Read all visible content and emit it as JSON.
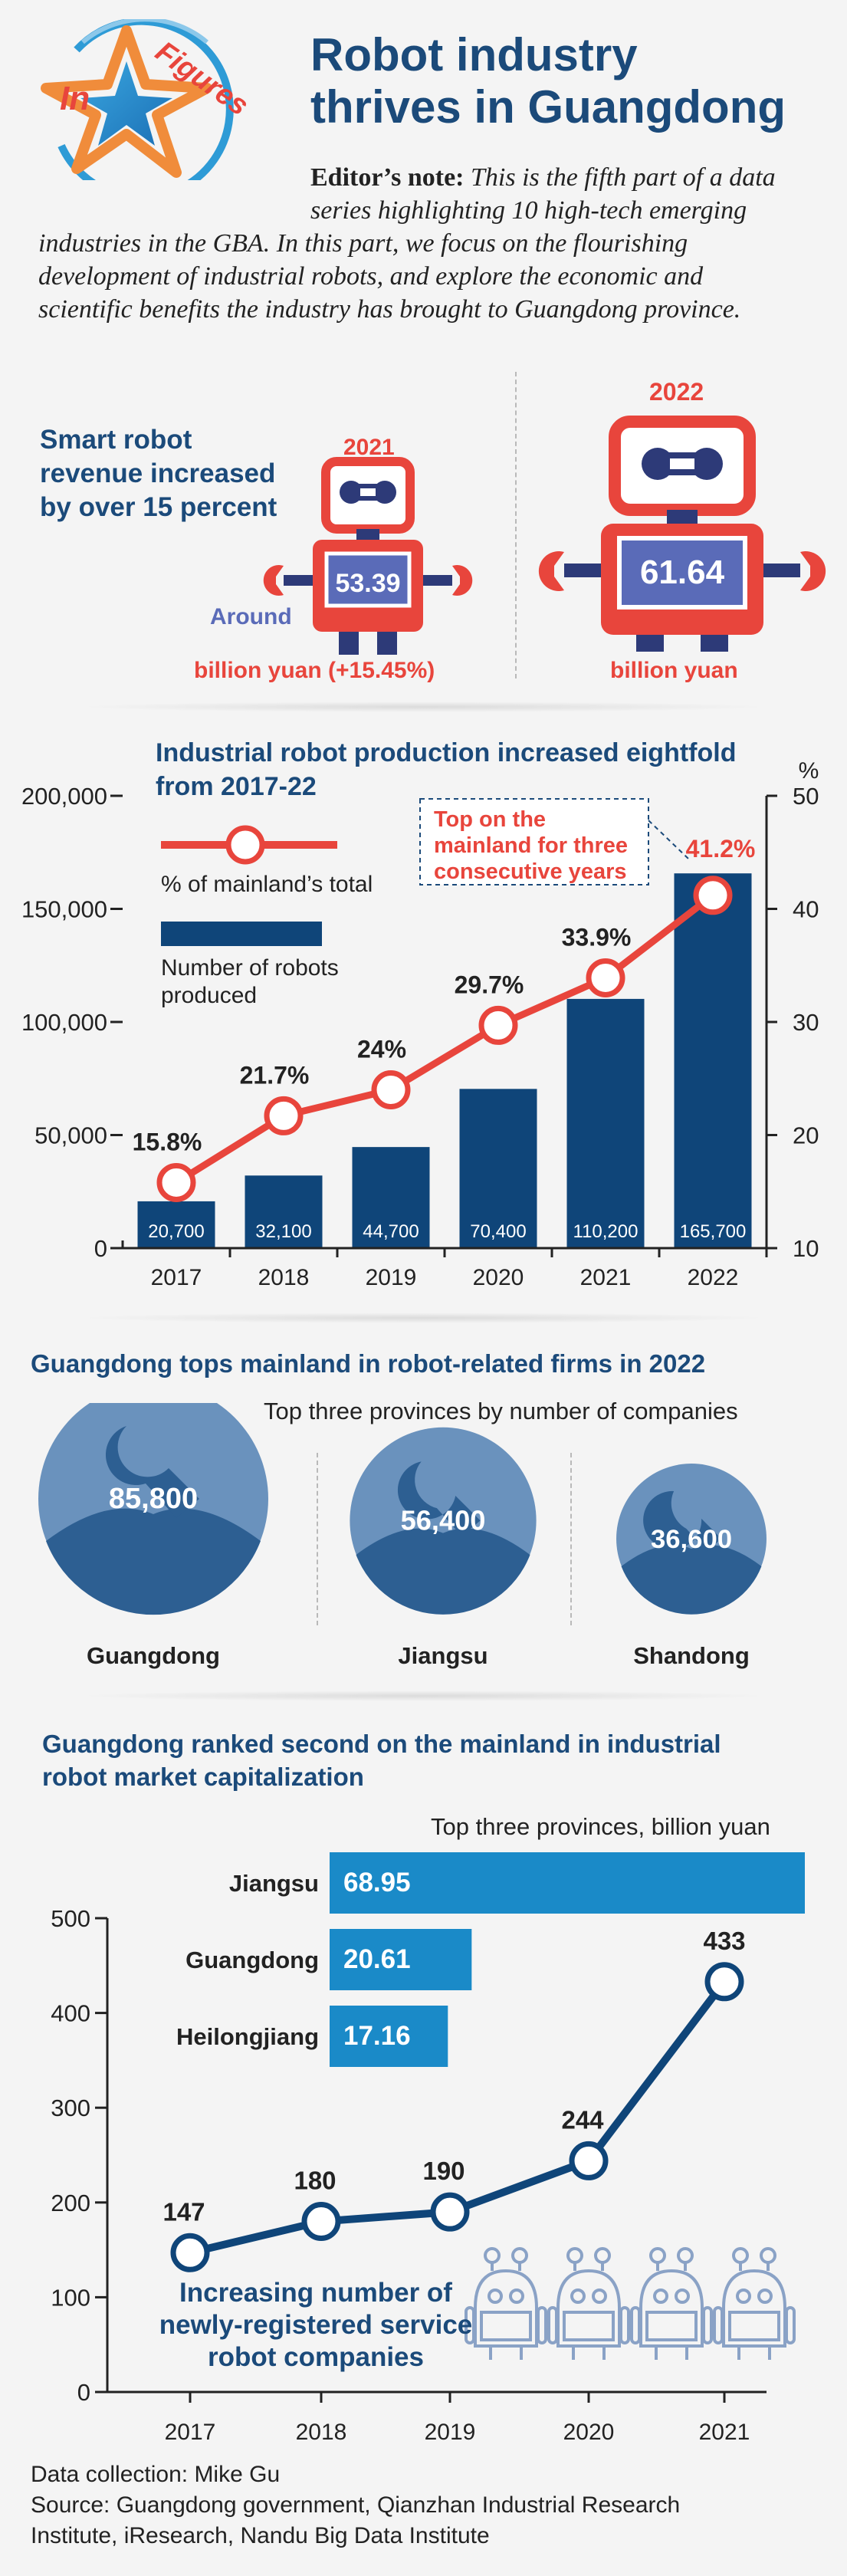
{
  "header": {
    "badge_in": "In",
    "badge_figures": "Figures",
    "title_line1": "Robot industry",
    "title_line2": "thrives in Guangdong",
    "note_label": "Editor’s note:",
    "note_lines": [
      "This is the fifth part of a data",
      "series highlighting 10 high-tech emerging",
      "industries in the GBA. In this part, we focus on the flourishing",
      "development of industrial robots, and explore the economic and",
      "scientific benefits the industry has brought to Guangdong province."
    ]
  },
  "revenue": {
    "title_lines": [
      "Smart robot",
      "revenue increased",
      "by over 15 percent"
    ],
    "y2021": {
      "year": "2021",
      "value": "53.39",
      "prefix": "Around",
      "unit": "billion yuan (+15.45%)"
    },
    "y2022": {
      "year": "2022",
      "value": "61.64",
      "unit": "billion yuan"
    }
  },
  "colors": {
    "navy": "#1b4a7a",
    "bar_navy": "#0f4579",
    "red": "#e8453c",
    "blue": "#1a8ac8",
    "circle": "#6a92bd",
    "circle_dark": "#2d5f92"
  },
  "chart_data": [
    {
      "type": "bar",
      "title_lines": [
        "Industrial robot production increased eightfold",
        "from 2017-22"
      ],
      "categories": [
        "2017",
        "2018",
        "2019",
        "2020",
        "2021",
        "2022"
      ],
      "series": [
        {
          "name": "Number of robots produced",
          "values": [
            20700,
            32100,
            44700,
            70400,
            110200,
            165700
          ],
          "labels": [
            "20,700",
            "32,100",
            "44,700",
            "70,400",
            "110,200",
            "165,700"
          ]
        },
        {
          "name": "% of mainland’s total",
          "type": "line",
          "values": [
            15.8,
            21.7,
            24,
            29.7,
            33.9,
            41.2
          ],
          "labels": [
            "15.8%",
            "21.7%",
            "24%",
            "29.7%",
            "33.9%",
            "41.2%"
          ]
        }
      ],
      "ylim": [
        0,
        200000
      ],
      "y_ticks": [
        "0",
        "50,000",
        "100,000",
        "150,000",
        "200,000"
      ],
      "y2lim": [
        10,
        50
      ],
      "y2_ticks": [
        "10",
        "20",
        "30",
        "40",
        "50"
      ],
      "y2label": "%",
      "legend_line": "% of mainland’s total",
      "legend_bar_lines": [
        "Number of robots",
        "produced"
      ],
      "annotation_lines": [
        "Top on the",
        "mainland for three",
        "consecutive years"
      ]
    },
    {
      "type": "bubble",
      "title": "Guangdong tops mainland in robot-related firms in 2022",
      "subtitle": "Top three provinces by number of companies",
      "categories": [
        "Guangdong",
        "Jiangsu",
        "Shandong"
      ],
      "values": [
        85800,
        56400,
        36600
      ],
      "labels": [
        "85,800",
        "56,400",
        "36,600"
      ]
    },
    {
      "type": "bar",
      "orientation": "horizontal",
      "title_lines": [
        "Guangdong ranked second on the mainland in industrial",
        "robot market capitalization"
      ],
      "subtitle": "Top three provinces, billion yuan",
      "categories": [
        "Jiangsu",
        "Guangdong",
        "Heilongjiang"
      ],
      "values": [
        68.95,
        20.61,
        17.16
      ],
      "labels": [
        "68.95",
        "20.61",
        "17.16"
      ]
    },
    {
      "type": "line",
      "title_lines": [
        "Increasing number of",
        "newly-registered service",
        "robot companies"
      ],
      "x": [
        "2017",
        "2018",
        "2019",
        "2020",
        "2021"
      ],
      "values": [
        147,
        180,
        190,
        244,
        433
      ],
      "labels": [
        "147",
        "180",
        "190",
        "244",
        "433"
      ],
      "ylim": [
        0,
        500
      ],
      "y_ticks": [
        "0",
        "100",
        "200",
        "300",
        "400",
        "500"
      ]
    }
  ],
  "footer": {
    "credit": "Data collection: Mike Gu",
    "source_lines": [
      "Source: Guangdong government, Qianzhan Industrial Research",
      "Institute, iResearch, Nandu Big Data Institute"
    ]
  }
}
